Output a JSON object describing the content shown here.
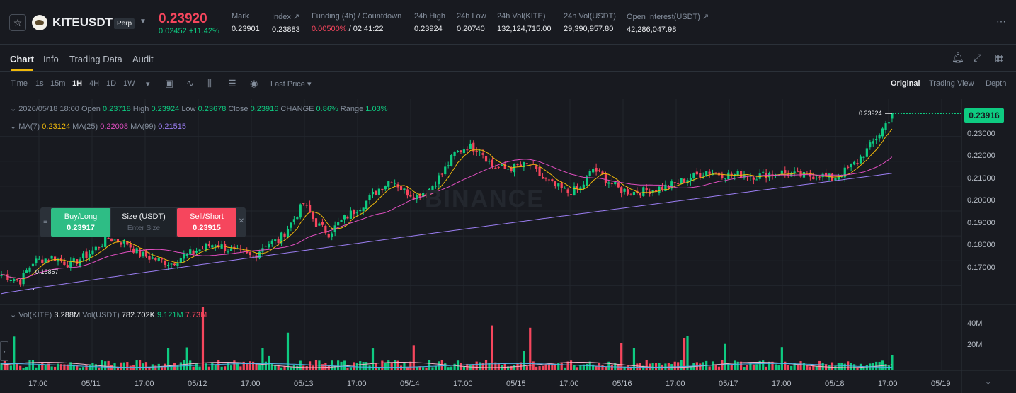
{
  "header": {
    "symbol": "KITEUSDT",
    "contract": "Perp",
    "last_price": "0.23920",
    "change": "0.02452 +11.42%",
    "stats": [
      {
        "label": "Mark",
        "value": "0.23901"
      },
      {
        "label": "Index ↗",
        "value": "0.23883"
      },
      {
        "label": "Funding (4h) / Countdown",
        "value_rate": "0.00500%",
        "value_countdown": "/ 02:41:22"
      },
      {
        "label": "24h High",
        "value": "0.23924"
      },
      {
        "label": "24h Low",
        "value": "0.20740"
      },
      {
        "label": "24h Vol(KITE)",
        "value": "132,124,715.00"
      },
      {
        "label": "24h Vol(USDT)",
        "value": "29,390,957.80"
      },
      {
        "label": "Open Interest(USDT) ↗",
        "value": "42,286,047.98"
      }
    ],
    "more_icon": "⋯"
  },
  "tabs": [
    "Chart",
    "Info",
    "Trading Data",
    "Audit"
  ],
  "toolbar": {
    "intervals": [
      "Time",
      "1s",
      "15m",
      "1H",
      "4H",
      "1D",
      "1W"
    ],
    "selected_interval": "1H",
    "price_source": "Last Price ▾",
    "views": [
      "Original",
      "Trading View",
      "Depth"
    ],
    "selected_view": "Original"
  },
  "ohlc": {
    "date": "2026/05/18 18:00",
    "open_label": "Open",
    "open": "0.23718",
    "high_label": "High",
    "high": "0.23924",
    "low_label": "Low",
    "low": "0.23678",
    "close_label": "Close",
    "close": "0.23916",
    "change_label": "CHANGE",
    "change": "0.86%",
    "range_label": "Range",
    "range": "1.03%"
  },
  "ma": {
    "ma7_label": "MA(7)",
    "ma7": "0.23124",
    "ma25_label": "MA(25)",
    "ma25": "0.22008",
    "ma99_label": "MA(99)",
    "ma99": "0.21515"
  },
  "trade_panel": {
    "buy_label": "Buy/Long",
    "buy_price": "0.23917",
    "size_label": "Size (USDT)",
    "size_placeholder": "Enter Size",
    "sell_label": "Sell/Short",
    "sell_price": "0.23915"
  },
  "current_price_tag": "0.23916",
  "high_marker": "0.23924",
  "low_marker": "0.16857",
  "watermark": "BINANCE",
  "volume": {
    "kite_label": "Vol(KITE)",
    "kite": "3.288M",
    "usdt_label": "Vol(USDT)",
    "usdt": "782.702K",
    "ma1": "9.121M",
    "ma2": "7.73M"
  },
  "colors": {
    "up": "#0ecb81",
    "down": "#f6465d",
    "ma7": "#f0b90b",
    "ma25": "#e04ec0",
    "ma99": "#9b7ef2",
    "accent": "#f0b90b"
  },
  "chart_data": {
    "type": "candlestick",
    "interval": "1H",
    "y_ticks": [
      "0.23000",
      "0.22000",
      "0.21000",
      "0.20000",
      "0.19000",
      "0.18000",
      "0.17000"
    ],
    "ylim": [
      0.163,
      0.245
    ],
    "x_ticks": [
      "17:00",
      "05/11",
      "17:00",
      "05/12",
      "17:00",
      "05/13",
      "17:00",
      "05/14",
      "17:00",
      "05/15",
      "17:00",
      "05/16",
      "17:00",
      "05/17",
      "17:00",
      "05/18",
      "17:00",
      "05/19"
    ],
    "volume_ticks": [
      "40M",
      "20M"
    ],
    "close_path": [
      [
        0,
        0.1745
      ],
      [
        6,
        0.172
      ],
      [
        10,
        0.1795
      ],
      [
        16,
        0.1815
      ],
      [
        22,
        0.1785
      ],
      [
        28,
        0.183
      ],
      [
        34,
        0.189
      ],
      [
        40,
        0.187
      ],
      [
        44,
        0.1825
      ],
      [
        48,
        0.181
      ],
      [
        54,
        0.179
      ],
      [
        58,
        0.182
      ],
      [
        64,
        0.185
      ],
      [
        68,
        0.187
      ],
      [
        72,
        0.1845
      ],
      [
        76,
        0.183
      ],
      [
        80,
        0.1815
      ],
      [
        84,
        0.187
      ],
      [
        88,
        0.188
      ],
      [
        92,
        0.195
      ],
      [
        96,
        0.203
      ],
      [
        100,
        0.195
      ],
      [
        104,
        0.191
      ],
      [
        108,
        0.196
      ],
      [
        112,
        0.2
      ],
      [
        116,
        0.204
      ],
      [
        120,
        0.209
      ],
      [
        124,
        0.213
      ],
      [
        128,
        0.208
      ],
      [
        132,
        0.206
      ],
      [
        136,
        0.209
      ],
      [
        140,
        0.215
      ],
      [
        144,
        0.223
      ],
      [
        148,
        0.226
      ],
      [
        152,
        0.225
      ],
      [
        156,
        0.218
      ],
      [
        160,
        0.217
      ],
      [
        164,
        0.218
      ],
      [
        168,
        0.2185
      ],
      [
        172,
        0.213
      ],
      [
        176,
        0.21
      ],
      [
        180,
        0.2075
      ],
      [
        184,
        0.209
      ],
      [
        188,
        0.217
      ],
      [
        192,
        0.213
      ],
      [
        196,
        0.209
      ],
      [
        200,
        0.2075
      ],
      [
        204,
        0.208
      ],
      [
        208,
        0.209
      ],
      [
        212,
        0.21
      ],
      [
        216,
        0.212
      ],
      [
        220,
        0.214
      ],
      [
        224,
        0.216
      ],
      [
        228,
        0.215
      ],
      [
        232,
        0.2145
      ],
      [
        236,
        0.215
      ],
      [
        240,
        0.214
      ],
      [
        244,
        0.215
      ],
      [
        248,
        0.2155
      ],
      [
        252,
        0.2145
      ],
      [
        256,
        0.214
      ],
      [
        260,
        0.2145
      ],
      [
        264,
        0.213
      ],
      [
        268,
        0.216
      ],
      [
        272,
        0.22
      ],
      [
        276,
        0.226
      ],
      [
        280,
        0.233
      ],
      [
        283,
        0.2392
      ]
    ],
    "ma_series": [
      {
        "name": "MA(7)",
        "last": 0.23124
      },
      {
        "name": "MA(25)",
        "last": 0.22008
      },
      {
        "name": "MA(99)",
        "last": 0.21515
      }
    ],
    "volume_ylim": [
      0,
      48000000
    ],
    "volume_max": 48000000,
    "volume_avg": 4000000
  }
}
